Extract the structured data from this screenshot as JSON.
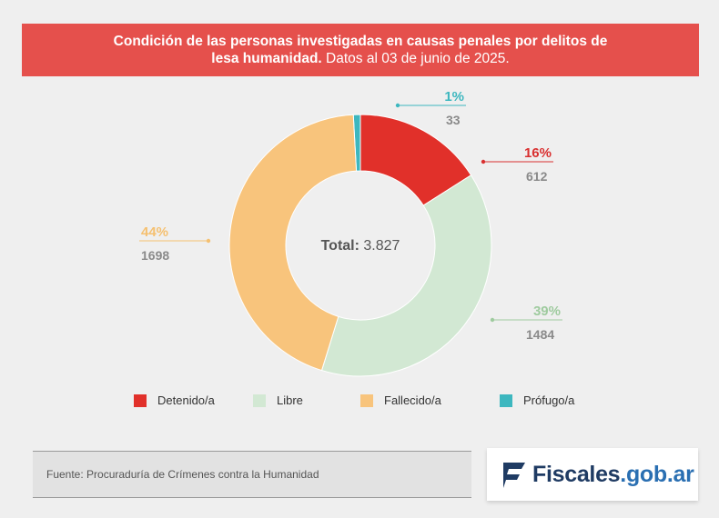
{
  "header": {
    "title_bold_line1": "Condición de las personas investigadas en causas penales por delitos de",
    "title_bold_line2": "lesa humanidad.",
    "title_regular": " Datos al 03 de junio de 2025."
  },
  "chart_data": {
    "type": "pie",
    "subtype": "donut",
    "center_label": "Total:",
    "center_value": "3.827",
    "slices": [
      {
        "name": "Detenido/a",
        "value": 612,
        "percent_label": "16%",
        "value_label": "612",
        "color": "#e1302a"
      },
      {
        "name": "Libre",
        "value": 1484,
        "percent_label": "39%",
        "value_label": "1484",
        "color": "#d2e8d3"
      },
      {
        "name": "Fallecido/a",
        "value": 1698,
        "percent_label": "44%",
        "value_label": "1698",
        "color": "#f8c47c"
      },
      {
        "name": "Prófugo/a",
        "value": 33,
        "percent_label": "1%",
        "value_label": "33",
        "color": "#3db7bf"
      }
    ],
    "label_colors": {
      "Detenido/a": "#d93030",
      "Libre": "#9fcb9f",
      "Fallecido/a": "#f5c070",
      "Prófugo/a": "#3db7bf"
    }
  },
  "footer": {
    "source": "Fuente: Procuraduría de Crímenes contra la Humanidad",
    "logo_text_main": "Fiscales",
    "logo_text_domain": ".gob.ar",
    "logo_icon": "flag-logo-icon"
  }
}
